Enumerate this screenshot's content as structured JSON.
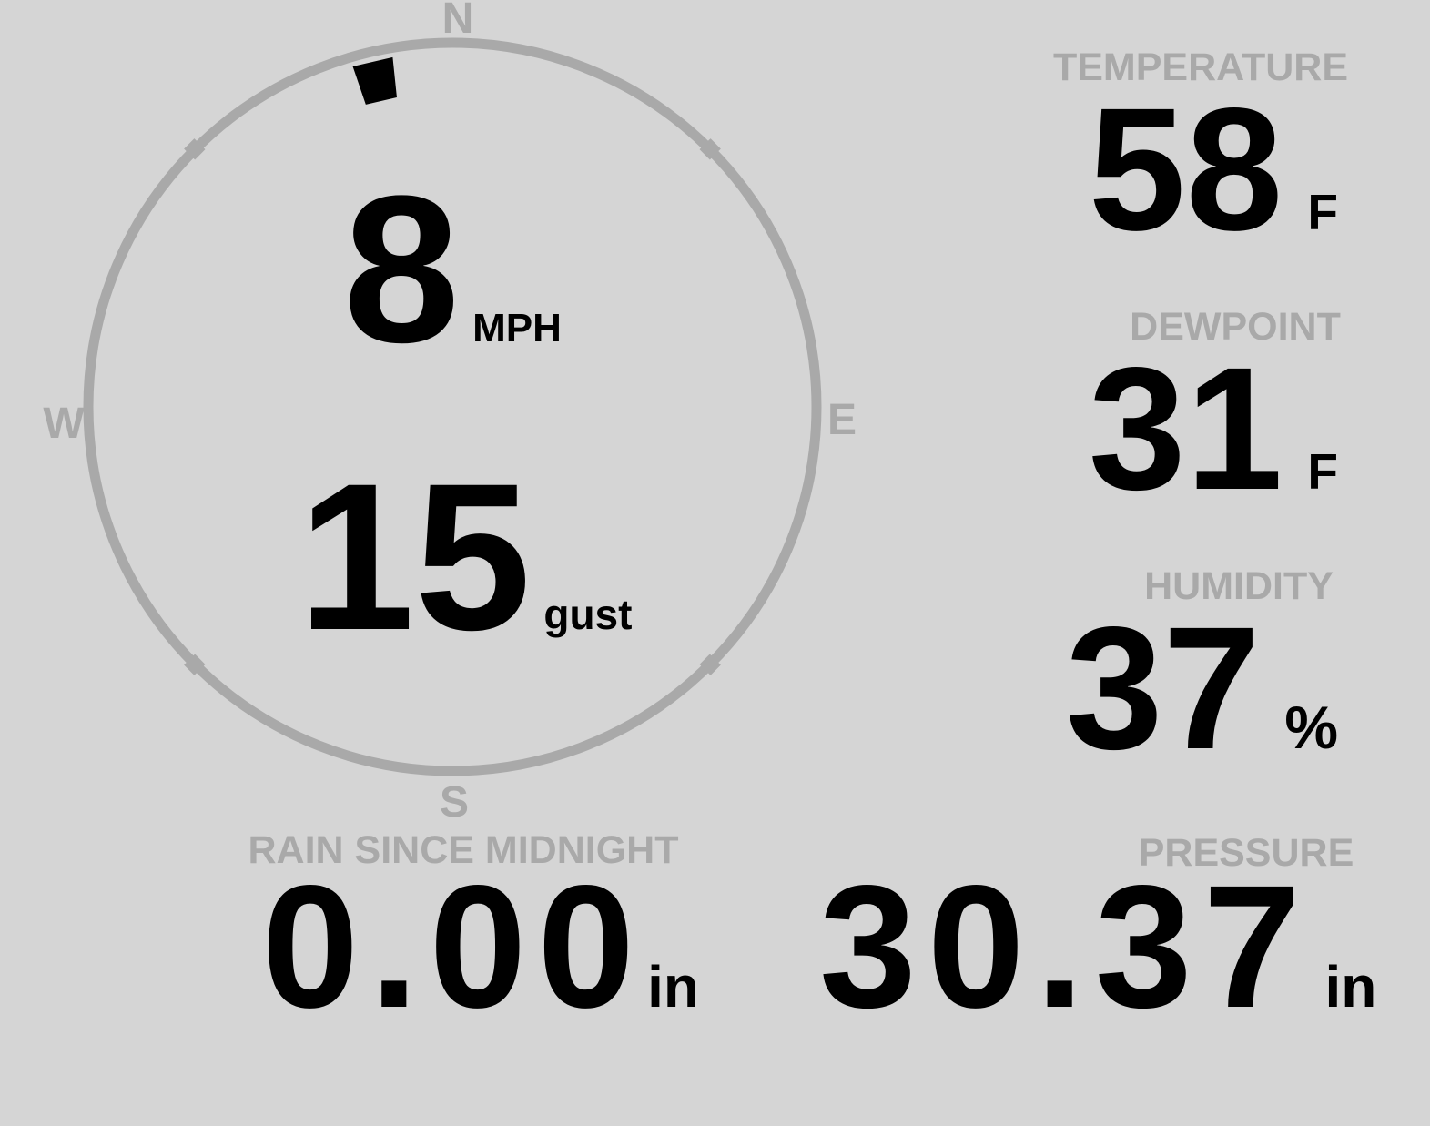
{
  "colors": {
    "background": "#d5d5d5",
    "muted": "#a9a9a9",
    "ink": "#000000"
  },
  "wind": {
    "speed": "8",
    "speed_unit": "MPH",
    "gust": "15",
    "gust_unit": "gust",
    "direction_deg": 347,
    "cardinals": {
      "north": "N",
      "east": "E",
      "south": "S",
      "west": "W"
    }
  },
  "metrics": {
    "temperature": {
      "label": "TEMPERATURE",
      "value": "58",
      "unit": "F"
    },
    "dewpoint": {
      "label": "DEWPOINT",
      "value": "31",
      "unit": "F"
    },
    "humidity": {
      "label": "HUMIDITY",
      "value": "37",
      "unit": "%"
    },
    "rain": {
      "label": "RAIN SINCE MIDNIGHT",
      "value": "0.00",
      "unit": "in"
    },
    "pressure": {
      "label": "PRESSURE",
      "value": "30.37",
      "unit": "in"
    }
  }
}
